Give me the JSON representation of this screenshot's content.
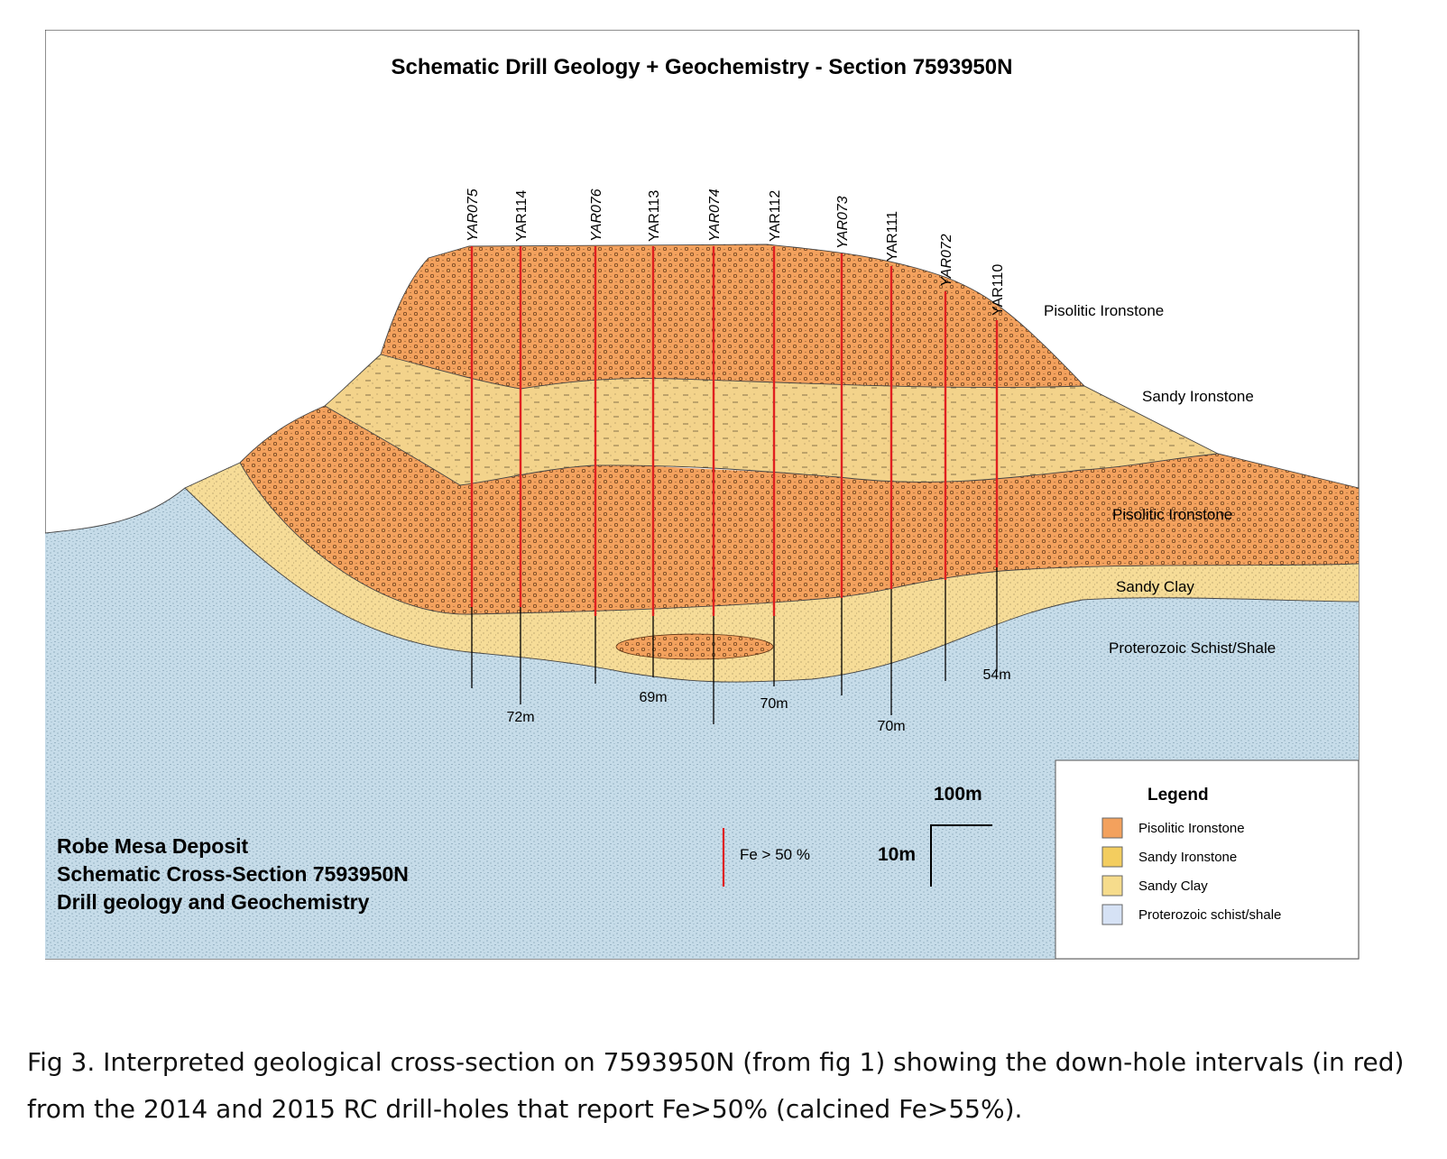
{
  "title": "Schematic Drill Geology + Geochemistry - Section 7593950N",
  "drill_holes": [
    {
      "name": "YAR075",
      "italic": true,
      "depth_label": ""
    },
    {
      "name": "YAR114",
      "italic": false,
      "depth_label": "72m"
    },
    {
      "name": "YAR076",
      "italic": true,
      "depth_label": ""
    },
    {
      "name": "YAR113",
      "italic": false,
      "depth_label": "69m"
    },
    {
      "name": "YAR074",
      "italic": true,
      "depth_label": ""
    },
    {
      "name": "YAR112",
      "italic": false,
      "depth_label": "70m"
    },
    {
      "name": "YAR073",
      "italic": true,
      "depth_label": ""
    },
    {
      "name": "YAR111",
      "italic": false,
      "depth_label": "70m"
    },
    {
      "name": "YAR072",
      "italic": true,
      "depth_label": ""
    },
    {
      "name": "YAR110",
      "italic": false,
      "depth_label": "54m"
    }
  ],
  "unit_labels": {
    "top_pisolitic": "Pisolitic Ironstone",
    "sandy_ironstone": "Sandy Ironstone",
    "lower_pisolitic": "Pisolitic Ironstone",
    "sandy_clay": "Sandy Clay",
    "basement": "Proterozoic Schist/Shale"
  },
  "deposit_text": {
    "line1": "Robe Mesa Deposit",
    "line2": "Schematic Cross-Section 7593950N",
    "line3": "Drill geology and Geochemistry"
  },
  "fe_legend": {
    "label": "Fe > 50 %",
    "color": "#e02020"
  },
  "scale": {
    "horizontal": "100m",
    "vertical": "10m"
  },
  "legend": {
    "title": "Legend",
    "items": [
      {
        "label": "Pisolitic Ironstone",
        "color": "#f3a15d"
      },
      {
        "label": "Sandy Ironstone",
        "color": "#f3cd5f"
      },
      {
        "label": "Sandy Clay",
        "color": "#f6dc8c"
      },
      {
        "label": "Proterozoic schist/shale",
        "color": "#d6e2f5"
      }
    ]
  },
  "colors": {
    "pisolitic": "#f3a15d",
    "sandy_ironstone": "#f3d38b",
    "sandy_clay": "#f6dc97",
    "basement": "#c6dce9"
  },
  "caption": "Fig 3. Interpreted geological cross-section on 7593950N (from fig 1) showing the down-hole intervals (in red) from the 2014 and 2015 RC drill-holes that report Fe>50% (calcined Fe>55%)."
}
